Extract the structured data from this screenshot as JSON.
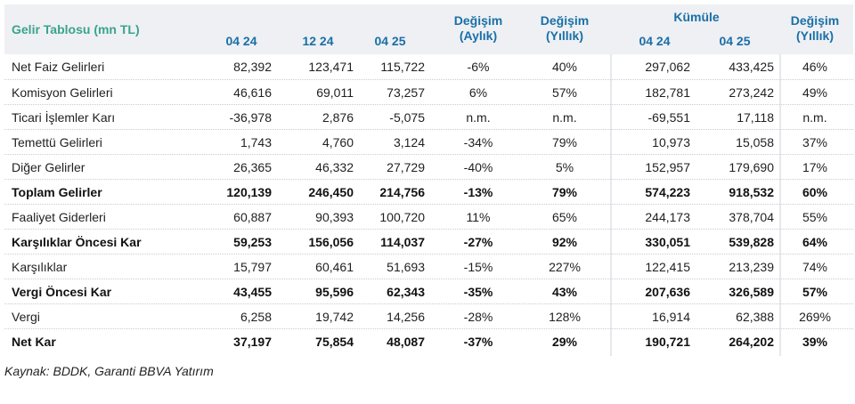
{
  "table": {
    "title": "Gelir Tablosu (mn TL)",
    "header": {
      "c1": "04 24",
      "c2": "12 24",
      "c3": "04 25",
      "c4": "Değişim\n(Aylık)",
      "c5": "Değişim\n(Yıllık)",
      "kumule": "Kümüle",
      "c6": "04 24",
      "c7": "04 25",
      "c8": "Değişim\n(Yıllık)"
    },
    "rows": [
      {
        "label": "Net Faiz Gelirleri",
        "v": [
          "82,392",
          "123,471",
          "115,722",
          "-6%",
          "40%",
          "297,062",
          "433,425",
          "46%"
        ],
        "bold": false
      },
      {
        "label": "Komisyon Gelirleri",
        "v": [
          "46,616",
          "69,011",
          "73,257",
          "6%",
          "57%",
          "182,781",
          "273,242",
          "49%"
        ],
        "bold": false
      },
      {
        "label": "Ticari İşlemler Karı",
        "v": [
          "-36,978",
          "2,876",
          "-5,075",
          "n.m.",
          "n.m.",
          "-69,551",
          "17,118",
          "n.m."
        ],
        "bold": false
      },
      {
        "label": "Temettü Gelirleri",
        "v": [
          "1,743",
          "4,760",
          "3,124",
          "-34%",
          "79%",
          "10,973",
          "15,058",
          "37%"
        ],
        "bold": false
      },
      {
        "label": "Diğer Gelirler",
        "v": [
          "26,365",
          "46,332",
          "27,729",
          "-40%",
          "5%",
          "152,957",
          "179,690",
          "17%"
        ],
        "bold": false
      },
      {
        "label": "Toplam Gelirler",
        "v": [
          "120,139",
          "246,450",
          "214,756",
          "-13%",
          "79%",
          "574,223",
          "918,532",
          "60%"
        ],
        "bold": true
      },
      {
        "label": "Faaliyet Giderleri",
        "v": [
          "60,887",
          "90,393",
          "100,720",
          "11%",
          "65%",
          "244,173",
          "378,704",
          "55%"
        ],
        "bold": false
      },
      {
        "label": "Karşılıklar Öncesi  Kar",
        "v": [
          "59,253",
          "156,056",
          "114,037",
          "-27%",
          "92%",
          "330,051",
          "539,828",
          "64%"
        ],
        "bold": true
      },
      {
        "label": "Karşılıklar",
        "v": [
          "15,797",
          "60,461",
          "51,693",
          "-15%",
          "227%",
          "122,415",
          "213,239",
          "74%"
        ],
        "bold": false
      },
      {
        "label": "Vergi Öncesi Kar",
        "v": [
          "43,455",
          "95,596",
          "62,343",
          "-35%",
          "43%",
          "207,636",
          "326,589",
          "57%"
        ],
        "bold": true
      },
      {
        "label": "Vergi",
        "v": [
          "6,258",
          "19,742",
          "14,256",
          "-28%",
          "128%",
          "16,914",
          "62,388",
          "269%"
        ],
        "bold": false
      },
      {
        "label": "Net Kar",
        "v": [
          "37,197",
          "75,854",
          "48,087",
          "-37%",
          "29%",
          "190,721",
          "264,202",
          "39%"
        ],
        "bold": true
      }
    ]
  },
  "source": "Kaynak: BDDK, Garanti BBVA Yatırım",
  "colors": {
    "header_bg": "#eef0f3",
    "header_text": "#1a6fa8",
    "title_text": "#3aa38f"
  }
}
